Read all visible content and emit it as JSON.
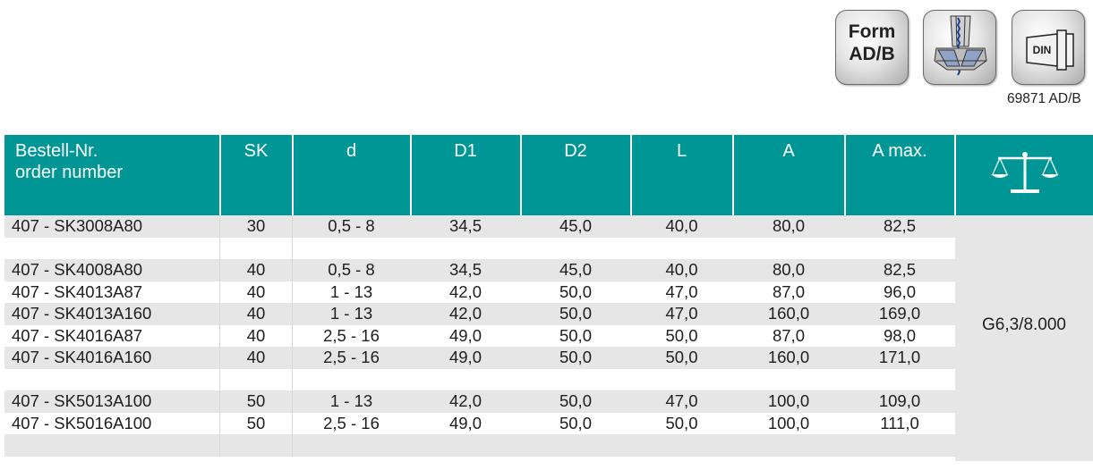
{
  "icons": {
    "form_line1": "Form",
    "form_line2": "AD/B",
    "din_label": "DIN",
    "norm_text": "69871 AD/B"
  },
  "table": {
    "headers": [
      {
        "line1": "Bestell-Nr.",
        "line2": "order number"
      },
      {
        "line1": "SK",
        "line2": ""
      },
      {
        "line1": "d",
        "line2": ""
      },
      {
        "line1": "D1",
        "line2": ""
      },
      {
        "line1": "D2",
        "line2": ""
      },
      {
        "line1": "L",
        "line2": ""
      },
      {
        "line1": "A",
        "line2": ""
      },
      {
        "line1": "A max.",
        "line2": ""
      }
    ],
    "balance_icon": "balance-scale-icon",
    "balance_value": "G6,3/8.000",
    "rows": [
      [
        "407 - SK3008A80",
        "30",
        "0,5 - 8",
        "34,5",
        "45,0",
        "40,0",
        "80,0",
        "82,5"
      ],
      [
        "",
        "",
        "",
        "",
        "",
        "",
        "",
        ""
      ],
      [
        "407 - SK4008A80",
        "40",
        "0,5 - 8",
        "34,5",
        "45,0",
        "40,0",
        "80,0",
        "82,5"
      ],
      [
        "407 - SK4013A87",
        "40",
        "1 - 13",
        "42,0",
        "50,0",
        "47,0",
        "87,0",
        "96,0"
      ],
      [
        "407 - SK4013A160",
        "40",
        "1 - 13",
        "42,0",
        "50,0",
        "47,0",
        "160,0",
        "169,0"
      ],
      [
        "407 - SK4016A87",
        "40",
        "2,5 - 16",
        "49,0",
        "50,0",
        "50,0",
        "87,0",
        "98,0"
      ],
      [
        "407 - SK4016A160",
        "40",
        "2,5 - 16",
        "49,0",
        "50,0",
        "50,0",
        "160,0",
        "171,0"
      ],
      [
        "",
        "",
        "",
        "",
        "",
        "",
        "",
        ""
      ],
      [
        "407 - SK5013A100",
        "50",
        "1 - 13",
        "42,0",
        "50,0",
        "47,0",
        "100,0",
        "109,0"
      ],
      [
        "407 - SK5016A100",
        "50",
        "2,5 - 16",
        "49,0",
        "50,0",
        "50,0",
        "100,0",
        "111,0"
      ],
      [
        "",
        "",
        "",
        "",
        "",
        "",
        "",
        ""
      ]
    ]
  }
}
